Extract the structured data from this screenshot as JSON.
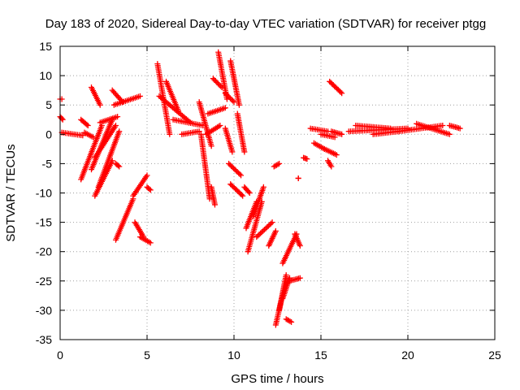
{
  "chart_data": {
    "type": "scatter",
    "title": "Day 183 of 2020, Sidereal Day-to-day VTEC variation (SDTVAR) for receiver ptgg",
    "xlabel": "GPS time / hours",
    "ylabel": "SDTVAR / TECUs",
    "xlim": [
      0,
      25
    ],
    "ylim": [
      -35,
      15
    ],
    "xticks": [
      0,
      5,
      10,
      15,
      20,
      25
    ],
    "yticks": [
      -35,
      -30,
      -25,
      -20,
      -15,
      -10,
      -5,
      0,
      5,
      10,
      15
    ],
    "grid": true,
    "marker": "+",
    "series": [
      {
        "name": "ptgg",
        "color": "#ff0000",
        "tracks": [
          {
            "x": [
              0.0,
              0.1
            ],
            "y": [
              6.0,
              6.0
            ]
          },
          {
            "x": [
              0.0,
              0.15
            ],
            "y": [
              3.0,
              2.5
            ]
          },
          {
            "x": [
              0.1,
              1.3
            ],
            "y": [
              0.3,
              -0.2
            ]
          },
          {
            "x": [
              1.2,
              1.6
            ],
            "y": [
              2.5,
              1.5
            ]
          },
          {
            "x": [
              1.4,
              1.9
            ],
            "y": [
              0.3,
              -0.5
            ]
          },
          {
            "x": [
              1.2,
              2.4
            ],
            "y": [
              -7.7,
              1.5
            ]
          },
          {
            "x": [
              1.8,
              2.3
            ],
            "y": [
              8.0,
              5.0
            ]
          },
          {
            "x": [
              1.8,
              3.0
            ],
            "y": [
              -6.0,
              2.5
            ]
          },
          {
            "x": [
              2.0,
              3.2
            ],
            "y": [
              -4.0,
              1.5
            ]
          },
          {
            "x": [
              2.0,
              3.0
            ],
            "y": [
              -10.5,
              -4.5
            ]
          },
          {
            "x": [
              2.2,
              3.4
            ],
            "y": [
              -9.0,
              0.5
            ]
          },
          {
            "x": [
              2.3,
              3.3
            ],
            "y": [
              2.0,
              3.0
            ]
          },
          {
            "x": [
              3.0,
              3.6
            ],
            "y": [
              7.5,
              5.5
            ]
          },
          {
            "x": [
              3.1,
              4.6
            ],
            "y": [
              5.0,
              6.5
            ]
          },
          {
            "x": [
              3.2,
              3.4
            ],
            "y": [
              -5.0,
              -5.5
            ]
          },
          {
            "x": [
              3.2,
              4.2
            ],
            "y": [
              -18.0,
              -11.0
            ]
          },
          {
            "x": [
              4.2,
              5.0
            ],
            "y": [
              -10.5,
              -7.0
            ]
          },
          {
            "x": [
              4.3,
              4.8
            ],
            "y": [
              -15.0,
              -17.5
            ]
          },
          {
            "x": [
              4.6,
              5.2
            ],
            "y": [
              -17.5,
              -18.5
            ]
          },
          {
            "x": [
              5.0,
              5.2
            ],
            "y": [
              -9.0,
              -9.5
            ]
          },
          {
            "x": [
              5.6,
              6.3
            ],
            "y": [
              12.0,
              0.0
            ]
          },
          {
            "x": [
              5.7,
              7.5
            ],
            "y": [
              6.5,
              2.0
            ]
          },
          {
            "x": [
              6.1,
              6.8
            ],
            "y": [
              9.0,
              4.0
            ]
          },
          {
            "x": [
              6.5,
              8.2
            ],
            "y": [
              2.5,
              1.5
            ]
          },
          {
            "x": [
              7.0,
              8.0
            ],
            "y": [
              0.0,
              0.5
            ]
          },
          {
            "x": [
              8.0,
              8.7
            ],
            "y": [
              5.5,
              -2.0
            ]
          },
          {
            "x": [
              8.1,
              8.6
            ],
            "y": [
              0.0,
              -11.0
            ]
          },
          {
            "x": [
              8.4,
              9.2
            ],
            "y": [
              0.0,
              1.5
            ]
          },
          {
            "x": [
              8.5,
              9.5
            ],
            "y": [
              3.5,
              4.5
            ]
          },
          {
            "x": [
              8.7,
              8.9
            ],
            "y": [
              -9.0,
              -12.0
            ]
          },
          {
            "x": [
              8.8,
              9.3
            ],
            "y": [
              9.5,
              8.0
            ]
          },
          {
            "x": [
              9.1,
              9.6
            ],
            "y": [
              14.0,
              6.0
            ]
          },
          {
            "x": [
              9.5,
              10.0
            ],
            "y": [
              7.0,
              5.5
            ]
          },
          {
            "x": [
              9.5,
              9.9
            ],
            "y": [
              1.0,
              -3.0
            ]
          },
          {
            "x": [
              9.8,
              10.3
            ],
            "y": [
              12.5,
              5.0
            ]
          },
          {
            "x": [
              9.7,
              10.4
            ],
            "y": [
              -5.0,
              -7.0
            ]
          },
          {
            "x": [
              9.8,
              10.5
            ],
            "y": [
              -8.5,
              -10.5
            ]
          },
          {
            "x": [
              10.2,
              10.6
            ],
            "y": [
              3.5,
              -3.0
            ]
          },
          {
            "x": [
              10.6,
              10.9
            ],
            "y": [
              -9.0,
              -10.0
            ]
          },
          {
            "x": [
              10.7,
              11.3
            ],
            "y": [
              -16.0,
              -11.5
            ]
          },
          {
            "x": [
              10.8,
              11.6
            ],
            "y": [
              -20.0,
              -11.5
            ]
          },
          {
            "x": [
              11.1,
              11.7
            ],
            "y": [
              -14.0,
              -9.0
            ]
          },
          {
            "x": [
              11.3,
              12.2
            ],
            "y": [
              -17.5,
              -15.0
            ]
          },
          {
            "x": [
              12.0,
              12.4
            ],
            "y": [
              -19.0,
              -16.5
            ]
          },
          {
            "x": [
              12.3,
              12.6
            ],
            "y": [
              -5.5,
              -5.0
            ]
          },
          {
            "x": [
              12.4,
              12.9
            ],
            "y": [
              -32.5,
              -26.0
            ]
          },
          {
            "x": [
              12.6,
              13.0
            ],
            "y": [
              -30.0,
              -24.0
            ]
          },
          {
            "x": [
              12.8,
              13.2
            ],
            "y": [
              -28.0,
              -24.5
            ]
          },
          {
            "x": [
              12.8,
              13.6
            ],
            "y": [
              -22.0,
              -17.0
            ]
          },
          {
            "x": [
              13.0,
              13.3
            ],
            "y": [
              -31.5,
              -32.0
            ]
          },
          {
            "x": [
              13.2,
              13.8
            ],
            "y": [
              -25.0,
              -24.5
            ]
          },
          {
            "x": [
              13.5,
              13.8
            ],
            "y": [
              -17.0,
              -19.0
            ]
          },
          {
            "x": [
              13.7,
              13.7
            ],
            "y": [
              -7.5,
              -7.5
            ]
          },
          {
            "x": [
              14.0,
              14.2
            ],
            "y": [
              -4.0,
              -4.2
            ]
          },
          {
            "x": [
              14.4,
              15.4
            ],
            "y": [
              1.0,
              0.5
            ]
          },
          {
            "x": [
              14.6,
              15.2
            ],
            "y": [
              -1.5,
              -2.5
            ]
          },
          {
            "x": [
              15.0,
              15.8
            ],
            "y": [
              0.0,
              -0.5
            ]
          },
          {
            "x": [
              15.2,
              15.9
            ],
            "y": [
              -2.5,
              -3.5
            ]
          },
          {
            "x": [
              15.4,
              15.6
            ],
            "y": [
              -4.5,
              -5.5
            ]
          },
          {
            "x": [
              15.5,
              16.2
            ],
            "y": [
              9.0,
              7.0
            ]
          },
          {
            "x": [
              15.6,
              16.2
            ],
            "y": [
              0.5,
              0.0
            ]
          },
          {
            "x": [
              16.6,
              20.0
            ],
            "y": [
              0.5,
              1.0
            ]
          },
          {
            "x": [
              17.0,
              19.0
            ],
            "y": [
              1.5,
              1.0
            ]
          },
          {
            "x": [
              18.0,
              19.5
            ],
            "y": [
              0.0,
              0.5
            ]
          },
          {
            "x": [
              19.5,
              22.0
            ],
            "y": [
              0.5,
              1.5
            ]
          },
          {
            "x": [
              20.5,
              22.4
            ],
            "y": [
              1.8,
              0.0
            ]
          },
          {
            "x": [
              22.4,
              23.0
            ],
            "y": [
              1.5,
              1.0
            ]
          }
        ]
      }
    ]
  }
}
